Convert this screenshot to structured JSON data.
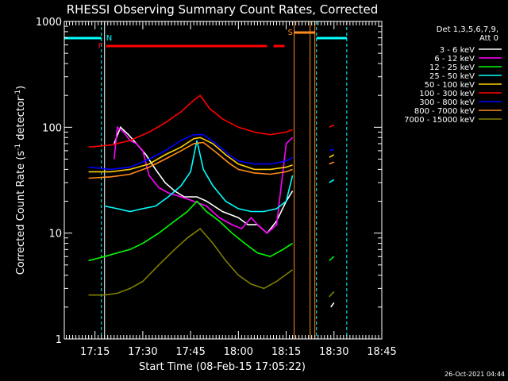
{
  "chart_data": {
    "type": "line",
    "title": "RHESSI Observing Summary Count Rates, Corrected",
    "xlabel": "Start Time (08-Feb-15 17:05:22)",
    "ylabel_parts": [
      "Corrected Count Rate (s",
      "-1",
      " detector",
      "-1",
      ")"
    ],
    "yscale": "log",
    "ylim": [
      1,
      1000
    ],
    "xlim": [
      "17:05:22",
      "18:45:00"
    ],
    "y_ticks": [
      {
        "v": 1,
        "label": "1"
      },
      {
        "v": 10,
        "label": "10"
      },
      {
        "v": 100,
        "label": "100"
      },
      {
        "v": 1000,
        "label": "1000"
      }
    ],
    "x_ticks": [
      {
        "t": "17:15",
        "label": "17:15"
      },
      {
        "t": "17:30",
        "label": "17:30"
      },
      {
        "t": "17:45",
        "label": "17:45"
      },
      {
        "t": "18:00",
        "label": "18:00"
      },
      {
        "t": "18:15",
        "label": "18:15"
      },
      {
        "t": "18:30",
        "label": "18:30"
      },
      {
        "t": "18:45",
        "label": "18:45"
      }
    ],
    "legend_header": [
      "Det 1,3,5,6,7,9,",
      "Att 0"
    ],
    "legend_position": "right",
    "timestamp": "26-Oct-2021 04:44",
    "series": [
      {
        "name": "3 - 6 keV",
        "color": "#ffffff",
        "segments": [
          [
            [
              "17:21:00",
              70
            ],
            [
              "17:23:00",
              100
            ],
            [
              "17:25:30",
              85
            ],
            [
              "17:28:00",
              70
            ],
            [
              "17:31:00",
              55
            ],
            [
              "17:34:00",
              40
            ],
            [
              "17:37:00",
              30
            ],
            [
              "17:40:00",
              25
            ],
            [
              "17:43:00",
              22
            ],
            [
              "17:47:00",
              22
            ],
            [
              "17:50:00",
              20
            ],
            [
              "17:55:00",
              16
            ],
            [
              "18:00:00",
              14
            ],
            [
              "18:03:00",
              12
            ],
            [
              "18:06:00",
              12
            ],
            [
              "18:09:00",
              10
            ],
            [
              "18:12:00",
              13
            ],
            [
              "18:15:00",
              20
            ],
            [
              "18:17:00",
              25
            ]
          ],
          [
            [
              "18:29:00",
              2
            ],
            [
              "18:30:00",
              2.2
            ]
          ]
        ]
      },
      {
        "name": "6 - 12 keV",
        "color": "#ff00ff",
        "segments": [
          [
            [
              "17:21:00",
              50
            ],
            [
              "17:22:00",
              100
            ],
            [
              "17:24:00",
              90
            ],
            [
              "17:26:00",
              75
            ],
            [
              "17:28:00",
              70
            ],
            [
              "17:30:00",
              60
            ],
            [
              "17:32:00",
              35
            ],
            [
              "17:35:00",
              27
            ],
            [
              "17:38:00",
              24
            ],
            [
              "17:42:00",
              22
            ],
            [
              "17:46:00",
              20
            ],
            [
              "17:50:00",
              18
            ],
            [
              "17:54:00",
              14
            ],
            [
              "17:58:00",
              12
            ],
            [
              "18:01:00",
              11
            ],
            [
              "18:04:00",
              14
            ],
            [
              "18:06:00",
              12
            ],
            [
              "18:09:00",
              10
            ],
            [
              "18:12:00",
              12
            ],
            [
              "18:15:00",
              70
            ],
            [
              "18:17:00",
              80
            ]
          ]
        ]
      },
      {
        "name": "12 - 25 keV",
        "color": "#00ff00",
        "segments": [
          [
            [
              "17:13:00",
              5.5
            ],
            [
              "17:18:00",
              6
            ],
            [
              "17:22:00",
              6.5
            ],
            [
              "17:26:00",
              7
            ],
            [
              "17:30:00",
              8
            ],
            [
              "17:35:00",
              10
            ],
            [
              "17:40:00",
              13
            ],
            [
              "17:44:00",
              16
            ],
            [
              "17:47:00",
              20
            ],
            [
              "17:50:00",
              16
            ],
            [
              "17:54:00",
              13
            ],
            [
              "17:58:00",
              10
            ],
            [
              "18:02:00",
              8
            ],
            [
              "18:06:00",
              6.5
            ],
            [
              "18:10:00",
              6
            ],
            [
              "18:14:00",
              7
            ],
            [
              "18:17:00",
              8
            ]
          ],
          [
            [
              "18:28:30",
              5.5
            ],
            [
              "18:30:00",
              6
            ]
          ]
        ]
      },
      {
        "name": "25 - 50 keV",
        "color": "#00ffff",
        "segments": [
          [
            [
              "17:18:00",
              18
            ],
            [
              "17:22:00",
              17
            ],
            [
              "17:26:00",
              16
            ],
            [
              "17:30:00",
              17
            ],
            [
              "17:34:00",
              18
            ],
            [
              "17:38:00",
              22
            ],
            [
              "17:42:00",
              28
            ],
            [
              "17:45:00",
              38
            ],
            [
              "17:47:00",
              75
            ],
            [
              "17:49:00",
              40
            ],
            [
              "17:52:00",
              28
            ],
            [
              "17:56:00",
              20
            ],
            [
              "18:00:00",
              17
            ],
            [
              "18:04:00",
              16
            ],
            [
              "18:08:00",
              16
            ],
            [
              "18:12:00",
              17
            ],
            [
              "18:15:00",
              20
            ],
            [
              "18:17:00",
              35
            ]
          ],
          [
            [
              "18:28:30",
              30
            ],
            [
              "18:30:00",
              32
            ]
          ]
        ]
      },
      {
        "name": "50 - 100 keV",
        "color": "#ffd000",
        "segments": [
          [
            [
              "17:13:00",
              38
            ],
            [
              "17:20:00",
              38
            ],
            [
              "17:26:00",
              40
            ],
            [
              "17:32:00",
              45
            ],
            [
              "17:37:00",
              55
            ],
            [
              "17:42:00",
              65
            ],
            [
              "17:46:00",
              78
            ],
            [
              "17:48:00",
              80
            ],
            [
              "17:52:00",
              70
            ],
            [
              "17:56:00",
              55
            ],
            [
              "18:00:00",
              45
            ],
            [
              "18:05:00",
              40
            ],
            [
              "18:10:00",
              40
            ],
            [
              "18:15:00",
              42
            ],
            [
              "18:17:00",
              44
            ]
          ],
          [
            [
              "18:28:30",
              52
            ],
            [
              "18:30:00",
              55
            ]
          ]
        ]
      },
      {
        "name": "100 - 300 keV",
        "color": "#ff0000",
        "segments": [
          [
            [
              "17:13:00",
              65
            ],
            [
              "17:20:00",
              68
            ],
            [
              "17:26:00",
              75
            ],
            [
              "17:32:00",
              90
            ],
            [
              "17:37:00",
              110
            ],
            [
              "17:42:00",
              140
            ],
            [
              "17:46:00",
              180
            ],
            [
              "17:48:00",
              200
            ],
            [
              "17:51:00",
              150
            ],
            [
              "17:55:00",
              120
            ],
            [
              "18:00:00",
              100
            ],
            [
              "18:05:00",
              90
            ],
            [
              "18:10:00",
              85
            ],
            [
              "18:15:00",
              90
            ],
            [
              "18:17:00",
              95
            ]
          ],
          [
            [
              "18:28:30",
              100
            ],
            [
              "18:30:00",
              105
            ]
          ]
        ]
      },
      {
        "name": "300 - 800 keV",
        "color": "#0000ff",
        "segments": [
          [
            [
              "17:13:00",
              42
            ],
            [
              "17:20:00",
              40
            ],
            [
              "17:26:00",
              42
            ],
            [
              "17:32:00",
              50
            ],
            [
              "17:37:00",
              60
            ],
            [
              "17:42:00",
              75
            ],
            [
              "17:46:00",
              85
            ],
            [
              "17:49:00",
              85
            ],
            [
              "17:53:00",
              70
            ],
            [
              "17:57:00",
              55
            ],
            [
              "18:00:00",
              48
            ],
            [
              "18:05:00",
              45
            ],
            [
              "18:10:00",
              45
            ],
            [
              "18:15:00",
              48
            ],
            [
              "18:17:00",
              52
            ]
          ],
          [
            [
              "18:28:30",
              60
            ],
            [
              "18:30:00",
              62
            ]
          ]
        ]
      },
      {
        "name": "800 - 7000 keV",
        "color": "#ff8c1a",
        "segments": [
          [
            [
              "17:13:00",
              33
            ],
            [
              "17:20:00",
              34
            ],
            [
              "17:26:00",
              36
            ],
            [
              "17:32:00",
              42
            ],
            [
              "17:37:00",
              50
            ],
            [
              "17:42:00",
              60
            ],
            [
              "17:46:00",
              70
            ],
            [
              "17:49:00",
              72
            ],
            [
              "17:53:00",
              58
            ],
            [
              "17:57:00",
              46
            ],
            [
              "18:00:00",
              40
            ],
            [
              "18:05:00",
              37
            ],
            [
              "18:10:00",
              36
            ],
            [
              "18:15:00",
              38
            ],
            [
              "18:17:00",
              40
            ]
          ],
          [
            [
              "18:28:30",
              45
            ],
            [
              "18:30:00",
              47
            ]
          ]
        ]
      },
      {
        "name": "7000 - 15000 keV",
        "color": "#808000",
        "segments": [
          [
            [
              "17:13:00",
              2.6
            ],
            [
              "17:18:00",
              2.6
            ],
            [
              "17:22:00",
              2.7
            ],
            [
              "17:26:00",
              3
            ],
            [
              "17:30:00",
              3.5
            ],
            [
              "17:35:00",
              5
            ],
            [
              "17:40:00",
              7
            ],
            [
              "17:44:00",
              9
            ],
            [
              "17:48:00",
              11
            ],
            [
              "17:52:00",
              8
            ],
            [
              "17:56:00",
              5.5
            ],
            [
              "18:00:00",
              4
            ],
            [
              "18:04:00",
              3.3
            ],
            [
              "18:08:00",
              3
            ],
            [
              "18:12:00",
              3.5
            ],
            [
              "18:17:00",
              4.5
            ]
          ],
          [
            [
              "18:28:30",
              2.5
            ],
            [
              "18:30:00",
              2.8
            ]
          ]
        ]
      }
    ],
    "flags": {
      "night_label": "N",
      "saa_label": "S",
      "flare_label": "F",
      "night_color": "#00ffff",
      "saa_color": "#ff8c1a",
      "flare_color": "#ff0000",
      "night_intervals": [
        [
          "17:05:22",
          "17:17:00"
        ],
        [
          "18:24:30",
          "18:34:00"
        ]
      ],
      "saa_intervals": [
        [
          "18:17:30",
          "18:24:00"
        ]
      ],
      "flare_intervals": [
        [
          "17:18:30",
          "18:09:00"
        ],
        [
          "18:11:00",
          "18:14:30"
        ]
      ],
      "vlines_night": [
        "17:17:00",
        "18:24:30",
        "18:34:00"
      ],
      "vlines_saa": [
        "18:17:30",
        "18:22:30",
        "18:24:00"
      ],
      "vline_white": "17:18:00"
    }
  }
}
